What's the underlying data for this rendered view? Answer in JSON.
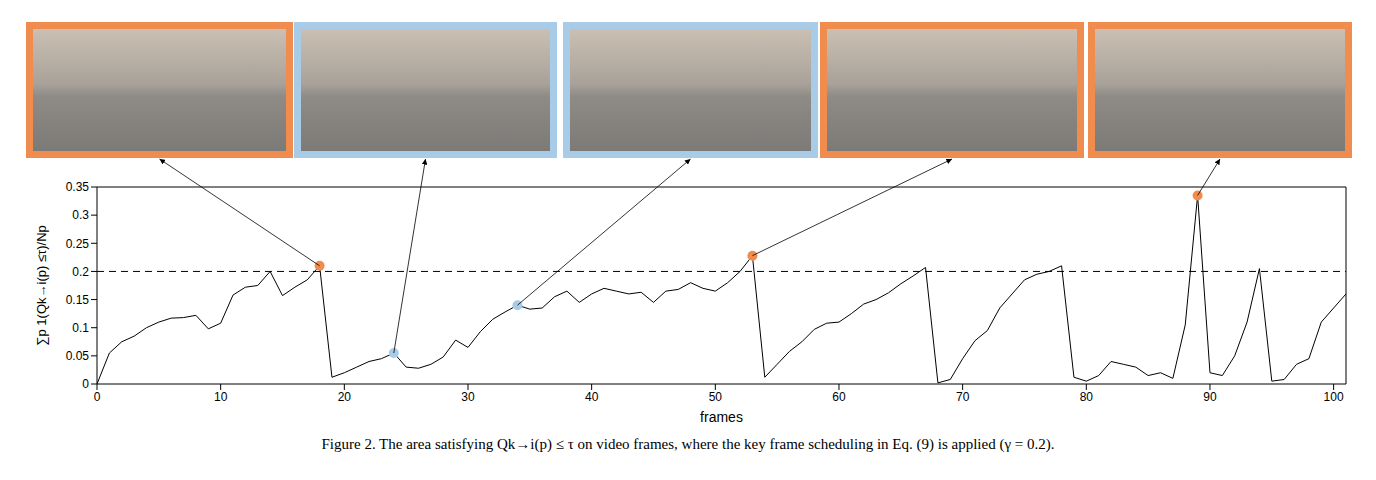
{
  "chart_data": {
    "type": "line",
    "caption": "Figure 2. The area satisfying Qk→i(p) ≤ τ on video frames, where the key frame scheduling in Eq. (9) is applied (γ = 0.2).",
    "x_label": "frames",
    "y_label": "∑p 1(Qk→i(p) ≤τ)/Np",
    "x": [
      0,
      1,
      2,
      3,
      4,
      5,
      6,
      7,
      8,
      9,
      10,
      11,
      12,
      13,
      14,
      15,
      16,
      17,
      18,
      19,
      20,
      21,
      22,
      23,
      24,
      25,
      26,
      27,
      28,
      29,
      30,
      31,
      32,
      33,
      34,
      35,
      36,
      37,
      38,
      39,
      40,
      41,
      42,
      43,
      44,
      45,
      46,
      47,
      48,
      49,
      50,
      51,
      52,
      53,
      54,
      55,
      56,
      57,
      58,
      59,
      60,
      61,
      62,
      63,
      64,
      65,
      66,
      67,
      68,
      69,
      70,
      71,
      72,
      73,
      74,
      75,
      76,
      77,
      78,
      79,
      80,
      81,
      82,
      83,
      84,
      85,
      86,
      87,
      88,
      89,
      90,
      91,
      92,
      93,
      94,
      95,
      96,
      97,
      98,
      99,
      100,
      101
    ],
    "values": [
      0,
      0.055,
      0.075,
      0.085,
      0.1,
      0.11,
      0.117,
      0.118,
      0.122,
      0.098,
      0.108,
      0.158,
      0.172,
      0.175,
      0.2,
      0.157,
      0.172,
      0.185,
      0.21,
      0.012,
      0.02,
      0.03,
      0.04,
      0.045,
      0.055,
      0.03,
      0.028,
      0.035,
      0.048,
      0.078,
      0.065,
      0.093,
      0.115,
      0.128,
      0.14,
      0.133,
      0.135,
      0.155,
      0.165,
      0.145,
      0.16,
      0.17,
      0.165,
      0.16,
      0.163,
      0.145,
      0.165,
      0.168,
      0.18,
      0.17,
      0.165,
      0.18,
      0.2,
      0.228,
      0.012,
      0.035,
      0.058,
      0.075,
      0.097,
      0.108,
      0.11,
      0.125,
      0.142,
      0.15,
      0.162,
      0.178,
      0.192,
      0.207,
      0.002,
      0.008,
      0.045,
      0.077,
      0.095,
      0.135,
      0.16,
      0.185,
      0.195,
      0.2,
      0.21,
      0.012,
      0.005,
      0.015,
      0.04,
      0.035,
      0.03,
      0.015,
      0.02,
      0.01,
      0.105,
      0.335,
      0.02,
      0.015,
      0.05,
      0.11,
      0.205,
      0.005,
      0.008,
      0.035,
      0.045,
      0.11,
      0.135,
      0.16
    ],
    "color": "#000000",
    "threshold": 0.2,
    "highlighted_frames": [
      {
        "x": 18,
        "color": "#f08d4e"
      },
      {
        "x": 24,
        "color": "#a8cbe8"
      },
      {
        "x": 34,
        "color": "#a8cbe8"
      },
      {
        "x": 53,
        "color": "#f08d4e"
      },
      {
        "x": 89,
        "color": "#f08d4e"
      }
    ],
    "xlim": [
      0,
      101
    ],
    "ylim": [
      0,
      0.35
    ],
    "xticks": [
      0,
      10,
      20,
      30,
      40,
      50,
      60,
      70,
      80,
      90,
      100
    ],
    "yticks": [
      0,
      0.05,
      0.1,
      0.15,
      0.2,
      0.25,
      0.3,
      0.35
    ],
    "grid": false
  }
}
